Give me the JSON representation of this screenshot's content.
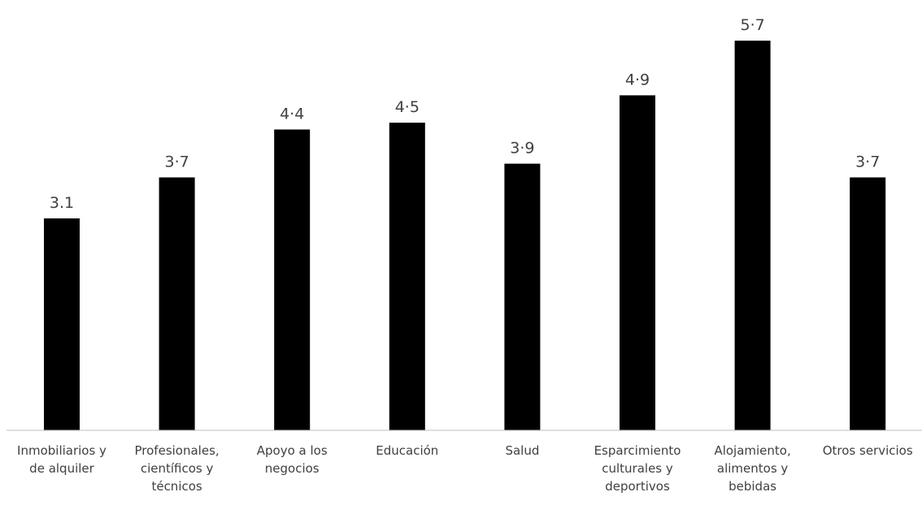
{
  "chart_data": {
    "type": "bar",
    "categories": [
      [
        "Inmobiliarios y",
        "de alquiler"
      ],
      [
        "Profesionales,",
        "científicos y",
        "técnicos"
      ],
      [
        "Apoyo a los",
        "negocios"
      ],
      [
        "Educación"
      ],
      [
        "Salud"
      ],
      [
        "Esparcimiento",
        "culturales y",
        "deportivos"
      ],
      [
        "Alojamiento,",
        "alimentos y",
        "bebidas"
      ],
      [
        "Otros servicios"
      ]
    ],
    "values": [
      3.1,
      3.7,
      4.4,
      4.5,
      3.9,
      4.9,
      5.7,
      3.7
    ],
    "data_labels": [
      "3.1",
      "3·7",
      "4·4",
      "4·5",
      "3·9",
      "4·9",
      "5·7",
      "3·7"
    ],
    "title": "",
    "xlabel": "",
    "ylabel": "",
    "ylim": [
      0,
      6
    ],
    "grid": false,
    "legend": "none",
    "colors": {
      "bar": "#000000",
      "axis": "#bfbfbf",
      "text": "#404040"
    }
  }
}
